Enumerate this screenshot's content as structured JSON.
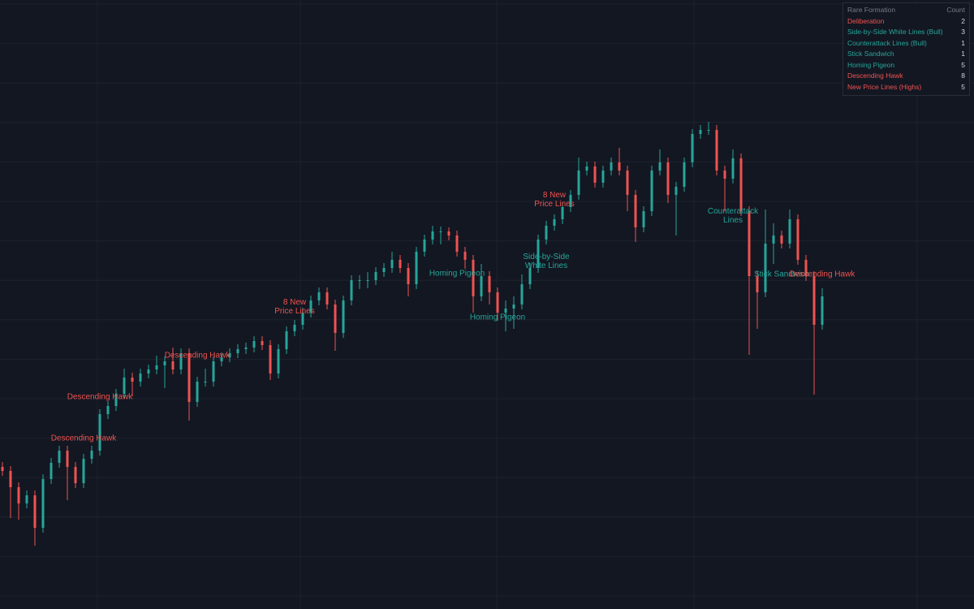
{
  "chart_data": {
    "type": "candlestick",
    "up_color": "#26a69a",
    "down_color": "#ef5350",
    "ylim": [
      0,
      750
    ],
    "candles": [
      [
        175,
        181,
        164,
        170
      ],
      [
        170,
        176,
        112,
        150
      ],
      [
        150,
        156,
        110,
        130
      ],
      [
        130,
        146,
        124,
        140
      ],
      [
        140,
        146,
        78,
        100
      ],
      [
        100,
        166,
        94,
        160
      ],
      [
        160,
        186,
        154,
        180
      ],
      [
        180,
        201,
        174,
        195
      ],
      [
        195,
        201,
        134,
        175
      ],
      [
        175,
        181,
        149,
        155
      ],
      [
        155,
        191,
        149,
        185
      ],
      [
        185,
        201,
        179,
        195
      ],
      [
        195,
        246,
        189,
        240
      ],
      [
        240,
        256,
        234,
        250
      ],
      [
        250,
        271,
        244,
        265
      ],
      [
        265,
        296,
        259,
        285
      ],
      [
        285,
        291,
        262,
        280
      ],
      [
        280,
        296,
        274,
        290
      ],
      [
        290,
        301,
        284,
        295
      ],
      [
        295,
        312,
        289,
        300
      ],
      [
        300,
        311,
        272,
        305
      ],
      [
        305,
        322,
        289,
        295
      ],
      [
        295,
        321,
        289,
        315
      ],
      [
        315,
        321,
        232,
        255
      ],
      [
        255,
        286,
        249,
        280
      ],
      [
        280,
        296,
        274,
        280
      ],
      [
        280,
        311,
        274,
        305
      ],
      [
        305,
        316,
        299,
        310
      ],
      [
        310,
        321,
        304,
        315
      ],
      [
        315,
        326,
        309,
        320
      ],
      [
        320,
        328,
        314,
        322
      ],
      [
        322,
        336,
        316,
        330
      ],
      [
        330,
        336,
        319,
        325
      ],
      [
        325,
        331,
        282,
        290
      ],
      [
        290,
        326,
        284,
        320
      ],
      [
        320,
        348,
        314,
        342
      ],
      [
        342,
        356,
        336,
        350
      ],
      [
        350,
        371,
        344,
        365
      ],
      [
        365,
        386,
        359,
        380
      ],
      [
        380,
        396,
        374,
        390
      ],
      [
        390,
        396,
        369,
        375
      ],
      [
        375,
        381,
        318,
        340
      ],
      [
        340,
        386,
        334,
        380
      ],
      [
        380,
        411,
        374,
        405
      ],
      [
        405,
        411,
        394,
        405
      ],
      [
        405,
        415,
        395,
        405
      ],
      [
        405,
        421,
        399,
        415
      ],
      [
        415,
        426,
        409,
        420
      ],
      [
        420,
        440,
        414,
        430
      ],
      [
        430,
        436,
        414,
        420
      ],
      [
        420,
        426,
        385,
        400
      ],
      [
        400,
        446,
        394,
        440
      ],
      [
        440,
        461,
        434,
        455
      ],
      [
        455,
        472,
        449,
        465
      ],
      [
        465,
        471,
        449,
        465
      ],
      [
        465,
        470,
        454,
        460
      ],
      [
        460,
        466,
        434,
        440
      ],
      [
        440,
        446,
        419,
        430
      ],
      [
        430,
        436,
        365,
        385
      ],
      [
        385,
        425,
        379,
        410
      ],
      [
        410,
        416,
        375,
        390
      ],
      [
        390,
        396,
        355,
        365
      ],
      [
        365,
        380,
        342,
        370
      ],
      [
        370,
        385,
        345,
        375
      ],
      [
        375,
        412,
        369,
        400
      ],
      [
        400,
        426,
        394,
        420
      ],
      [
        420,
        461,
        414,
        455
      ],
      [
        455,
        478,
        449,
        472
      ],
      [
        472,
        486,
        466,
        480
      ],
      [
        480,
        501,
        474,
        495
      ],
      [
        495,
        516,
        489,
        510
      ],
      [
        510,
        556,
        504,
        540
      ],
      [
        540,
        551,
        534,
        545
      ],
      [
        545,
        551,
        519,
        525
      ],
      [
        525,
        546,
        519,
        540
      ],
      [
        540,
        556,
        534,
        550
      ],
      [
        550,
        568,
        534,
        540
      ],
      [
        540,
        546,
        490,
        510
      ],
      [
        510,
        516,
        452,
        470
      ],
      [
        470,
        496,
        464,
        490
      ],
      [
        490,
        546,
        484,
        540
      ],
      [
        540,
        566,
        534,
        550
      ],
      [
        550,
        556,
        500,
        510
      ],
      [
        510,
        526,
        460,
        520
      ],
      [
        520,
        556,
        514,
        550
      ],
      [
        550,
        591,
        544,
        585
      ],
      [
        585,
        596,
        579,
        590
      ],
      [
        590,
        600,
        584,
        590
      ],
      [
        590,
        596,
        534,
        540
      ],
      [
        540,
        546,
        490,
        530
      ],
      [
        530,
        566,
        524,
        555
      ],
      [
        555,
        561,
        484,
        490
      ],
      [
        490,
        496,
        313,
        410
      ],
      [
        410,
        416,
        345,
        390
      ],
      [
        390,
        492,
        384,
        450
      ],
      [
        450,
        475,
        425,
        460
      ],
      [
        460,
        466,
        444,
        450
      ],
      [
        450,
        492,
        444,
        480
      ],
      [
        480,
        486,
        424,
        430
      ],
      [
        430,
        436,
        404,
        410
      ],
      [
        410,
        416,
        264,
        350
      ],
      [
        350,
        395,
        344,
        385
      ]
    ],
    "annotations": [
      {
        "text": "Descending Hawk",
        "color": "#ef5350",
        "candle": 10,
        "price": 210
      },
      {
        "text": "Descending Hawk",
        "color": "#ef5350",
        "candle": 12,
        "price": 261
      },
      {
        "text": "Descending Hawk",
        "color": "#ef5350",
        "candle": 24,
        "price": 312
      },
      {
        "text": "8 New\nPrice Lines",
        "color": "#ef5350",
        "candle": 36,
        "price": 372
      },
      {
        "text": "Homing Pigeon",
        "color": "#26a69a",
        "candle": 56,
        "price": 413
      },
      {
        "text": "Homing Pigeon",
        "color": "#26a69a",
        "candle": 61,
        "price": 359
      },
      {
        "text": "Side-by-Side\nWhite Lines",
        "color": "#26a69a",
        "candle": 67,
        "price": 428
      },
      {
        "text": "8 New\nPrice Lines",
        "color": "#ef5350",
        "candle": 68,
        "price": 504
      },
      {
        "text": "Counterattack\nLines",
        "color": "#26a69a",
        "candle": 90,
        "price": 484
      },
      {
        "text": "Stick Sandwich",
        "color": "#26a69a",
        "candle": 96,
        "price": 412
      },
      {
        "text": "Descending Hawk",
        "color": "#ef5350",
        "candle": 101,
        "price": 412
      }
    ],
    "table": {
      "header": [
        "Rare Formation",
        "Count"
      ],
      "rows": [
        {
          "name": "Deliberation",
          "count": 2,
          "color": "#ef5350"
        },
        {
          "name": "Side-by-Side White Lines (Bull)",
          "count": 3,
          "color": "#26a69a"
        },
        {
          "name": "Counterattack Lines (Bull)",
          "count": 1,
          "color": "#26a69a"
        },
        {
          "name": "Stick Sandwich",
          "count": 1,
          "color": "#26a69a"
        },
        {
          "name": "Homing Pigeon",
          "count": 5,
          "color": "#26a69a"
        },
        {
          "name": "Descending Hawk",
          "count": 8,
          "color": "#ef5350"
        },
        {
          "name": "New Price Lines (Highs)",
          "count": 5,
          "color": "#ef5350"
        }
      ]
    }
  }
}
